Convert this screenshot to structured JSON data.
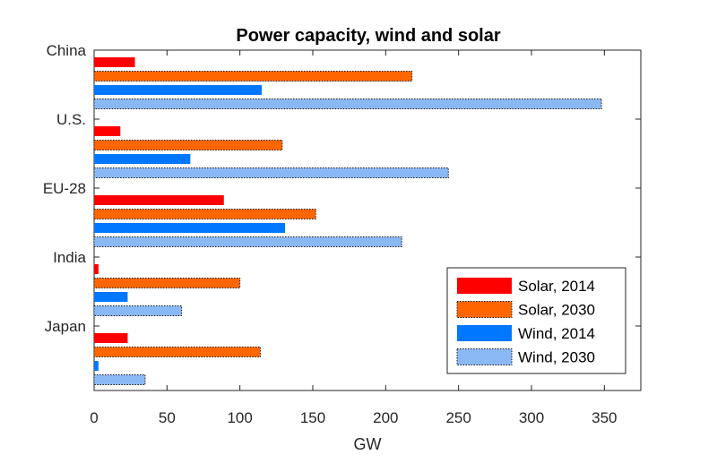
{
  "chart_data": {
    "type": "bar",
    "orientation": "horizontal",
    "title": "Power capacity, wind and solar",
    "xlabel": "GW",
    "ylabel": "",
    "xlim": [
      0,
      375
    ],
    "xticks": [
      0,
      50,
      100,
      150,
      200,
      250,
      300,
      350
    ],
    "categories": [
      "China",
      "U.S.",
      "EU-28",
      "India",
      "Japan"
    ],
    "series": [
      {
        "name": "Solar, 2014",
        "color": "#ff0000",
        "dotted": false,
        "values": [
          28,
          18,
          89,
          3,
          23
        ]
      },
      {
        "name": "Solar, 2030",
        "color": "#ff6600",
        "dotted": true,
        "values": [
          218,
          129,
          152,
          100,
          114
        ]
      },
      {
        "name": "Wind, 2014",
        "color": "#0077ff",
        "dotted": false,
        "values": [
          115,
          66,
          131,
          23,
          3
        ]
      },
      {
        "name": "Wind, 2030",
        "color": "#8ab8f5",
        "dotted": true,
        "values": [
          348,
          243,
          211,
          60,
          35
        ]
      }
    ],
    "legend_position": "bottom-right",
    "grid": false
  }
}
